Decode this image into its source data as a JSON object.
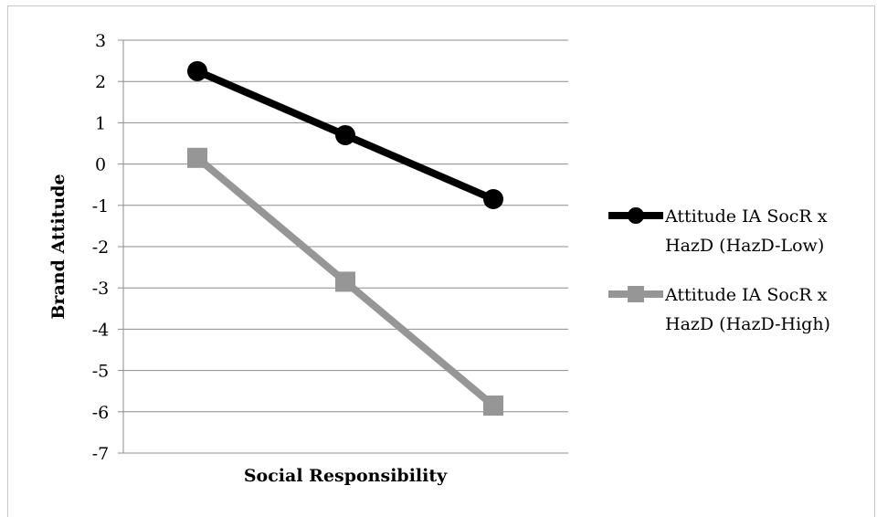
{
  "chart_data": {
    "type": "line",
    "title": "",
    "xlabel": "Social Responsibility",
    "ylabel": "Brand Attitude",
    "x": [
      1,
      2,
      3
    ],
    "ylim": [
      -7,
      3
    ],
    "yticks": [
      3,
      2,
      1,
      0,
      -1,
      -2,
      -3,
      -4,
      -5,
      -6,
      -7
    ],
    "ytick_labels": [
      "3",
      "2",
      "1",
      "0",
      "-1",
      "-2",
      "-3",
      "-4",
      "-5",
      "-6",
      "-7"
    ],
    "grid": true,
    "legend_position": "right",
    "series": [
      {
        "name": "Attitude IA SocR x HazD (HazD-Low)",
        "name_lines": [
          "Attitude IA SocR x",
          "HazD (HazD-Low)"
        ],
        "values": [
          2.25,
          0.7,
          -0.85
        ],
        "color": "#000000",
        "marker": "circle"
      },
      {
        "name": "Attitude IA SocR x HazD (HazD-High)",
        "name_lines": [
          "Attitude IA SocR x",
          "HazD (HazD-High)"
        ],
        "values": [
          0.15,
          -2.85,
          -5.85
        ],
        "color": "#969696",
        "marker": "square"
      }
    ]
  }
}
